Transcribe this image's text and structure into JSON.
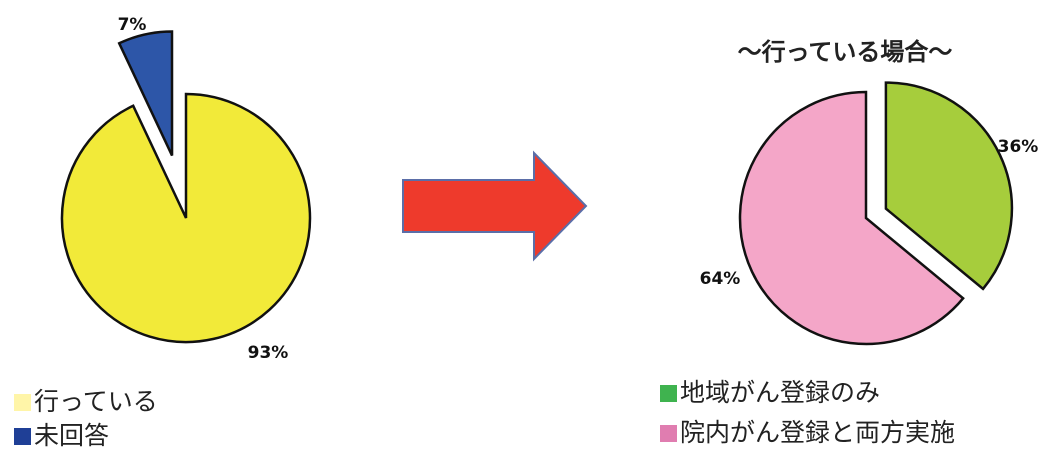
{
  "chart_data": [
    {
      "type": "pie",
      "title": "",
      "slices": [
        {
          "label": "行っている",
          "value": 93,
          "value_label": "93%",
          "color": "#f2ea39",
          "exploded": false
        },
        {
          "label": "未回答",
          "value": 7,
          "value_label": "7%",
          "color": "#2d56a8",
          "exploded": true
        }
      ],
      "legend_colors": [
        "#fff5a8",
        "#1f3f96"
      ]
    },
    {
      "type": "pie",
      "title": "〜行っている場合〜",
      "slices": [
        {
          "label": "地域がん登録のみ",
          "value": 36,
          "value_label": "36%",
          "color": "#a6cd3c",
          "exploded": true
        },
        {
          "label": "院内がん登録と両方実施",
          "value": 64,
          "value_label": "64%",
          "color": "#f4a6c8",
          "exploded": false
        }
      ],
      "legend_colors": [
        "#3fb34f",
        "#e07db0"
      ]
    }
  ],
  "arrow": {
    "fill": "#ee3a2c",
    "stroke": "#5b6ea8",
    "direction": "right"
  }
}
